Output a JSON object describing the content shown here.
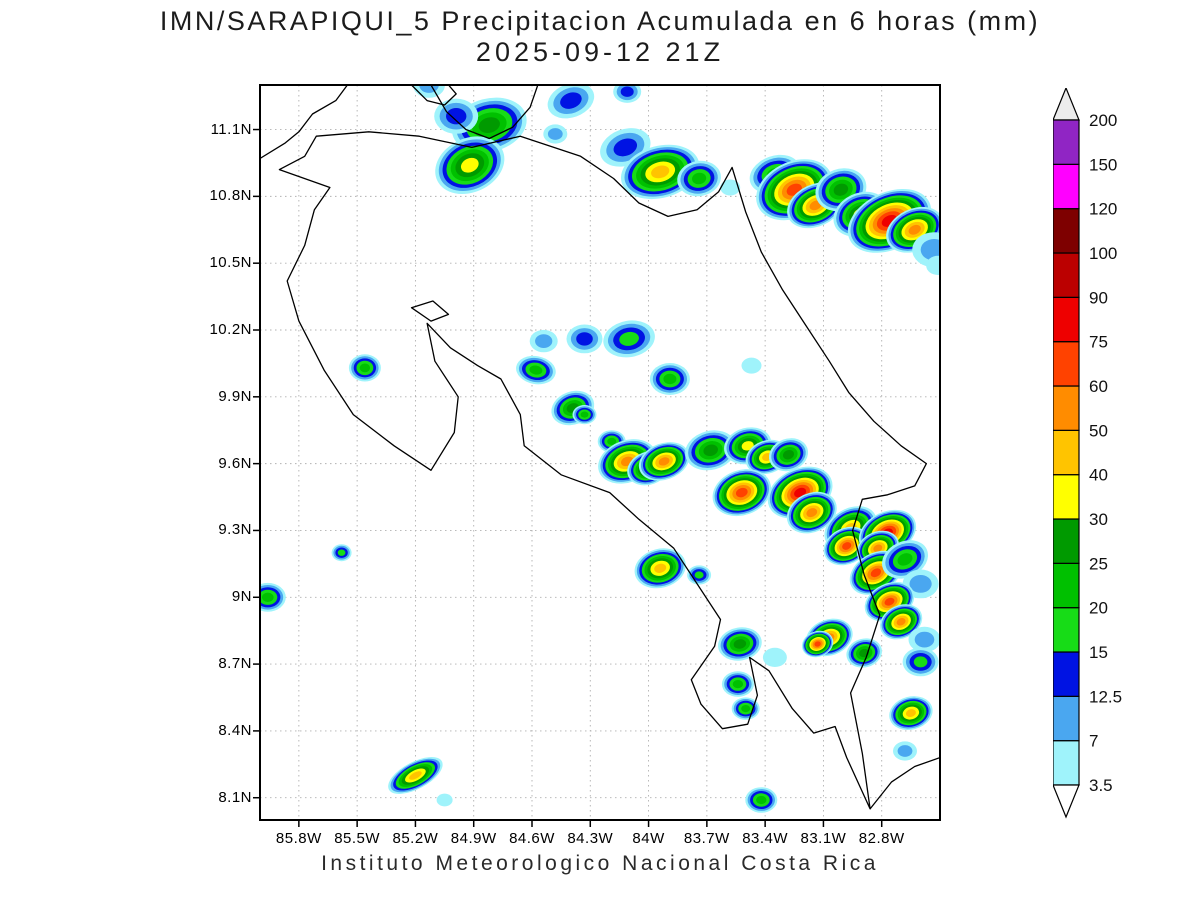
{
  "title": {
    "line1": "IMN/SARAPIQUI_5 Precipitacion Acumulada en 6 horas (mm)",
    "line2": "2025-09-12 21Z"
  },
  "footer": "Instituto Meteorologico Nacional Costa Rica",
  "map": {
    "lon_min_w": 86.0,
    "lon_max_w": 82.5,
    "lat_min": 8.0,
    "lat_max": 11.3,
    "lat_ticks": [
      "11.1N",
      "10.8N",
      "10.5N",
      "10.2N",
      "9.9N",
      "9.6N",
      "9.3N",
      "9N",
      "8.7N",
      "8.4N",
      "8.1N"
    ],
    "lat_tick_values": [
      11.1,
      10.8,
      10.5,
      10.2,
      9.9,
      9.6,
      9.3,
      9.0,
      8.7,
      8.4,
      8.1
    ],
    "lon_ticks": [
      "85.8W",
      "85.5W",
      "85.2W",
      "84.9W",
      "84.6W",
      "84.3W",
      "84W",
      "83.7W",
      "83.4W",
      "83.1W",
      "82.8W"
    ],
    "lon_tick_values": [
      85.8,
      85.5,
      85.2,
      84.9,
      84.6,
      84.3,
      84.0,
      83.7,
      83.4,
      83.1,
      82.8
    ]
  },
  "colorbar": {
    "tick_labels": [
      "3.5",
      "7",
      "12.5",
      "15",
      "20",
      "25",
      "30",
      "40",
      "50",
      "60",
      "75",
      "90",
      "100",
      "120",
      "150",
      "200"
    ],
    "tick_values": [
      3.5,
      7,
      12.5,
      15,
      20,
      25,
      30,
      40,
      50,
      60,
      75,
      90,
      100,
      120,
      150,
      200
    ],
    "segment_colors": [
      "#9ff3fb",
      "#4aa7f0",
      "#0013e3",
      "#17dc17",
      "#00c000",
      "#009a00",
      "#ffff00",
      "#ffc400",
      "#ff8c00",
      "#ff4200",
      "#ee0000",
      "#bb0000",
      "#7e0000",
      "#ff00ff",
      "#9025c4"
    ],
    "under_color": "#ffffff",
    "over_color": "#ececec"
  },
  "palette": {
    "3.5": "#9ff3fb",
    "7": "#4aa7f0",
    "12.5": "#0013e3",
    "15": "#17dc17",
    "20": "#00c000",
    "25": "#009a00",
    "30": "#ffff00",
    "40": "#ffc400",
    "50": "#ff8c00",
    "60": "#ff4200",
    "75": "#ee0000"
  },
  "geography": {
    "costa_rica_outline": [
      [
        85.71,
        11.07
      ],
      [
        85.44,
        11.09
      ],
      [
        85.18,
        11.07
      ],
      [
        84.91,
        11.02
      ],
      [
        84.66,
        11.07
      ],
      [
        84.35,
        10.98
      ],
      [
        84.18,
        10.88
      ],
      [
        84.05,
        10.77
      ],
      [
        83.9,
        10.71
      ],
      [
        83.75,
        10.74
      ],
      [
        83.64,
        10.82
      ],
      [
        83.57,
        10.93
      ],
      [
        83.5,
        10.73
      ],
      [
        83.42,
        10.55
      ],
      [
        83.31,
        10.38
      ],
      [
        83.19,
        10.22
      ],
      [
        83.07,
        10.06
      ],
      [
        82.97,
        9.92
      ],
      [
        82.84,
        9.79
      ],
      [
        82.7,
        9.68
      ],
      [
        82.57,
        9.6
      ],
      [
        82.63,
        9.5
      ],
      [
        82.77,
        9.46
      ],
      [
        82.9,
        9.44
      ],
      [
        82.95,
        9.3
      ],
      [
        82.89,
        9.1
      ],
      [
        82.81,
        8.92
      ],
      [
        82.88,
        8.73
      ],
      [
        82.96,
        8.57
      ],
      [
        82.9,
        8.3
      ],
      [
        82.86,
        8.05
      ],
      [
        82.98,
        8.28
      ],
      [
        83.04,
        8.42
      ],
      [
        83.15,
        8.39
      ],
      [
        83.26,
        8.5
      ],
      [
        83.38,
        8.67
      ],
      [
        83.48,
        8.73
      ],
      [
        83.44,
        8.56
      ],
      [
        83.49,
        8.43
      ],
      [
        83.62,
        8.41
      ],
      [
        83.73,
        8.52
      ],
      [
        83.78,
        8.63
      ],
      [
        83.66,
        8.78
      ],
      [
        83.63,
        8.9
      ],
      [
        83.87,
        9.22
      ],
      [
        84.05,
        9.35
      ],
      [
        84.2,
        9.47
      ],
      [
        84.45,
        9.55
      ],
      [
        84.64,
        9.68
      ],
      [
        84.66,
        9.82
      ],
      [
        84.76,
        9.98
      ],
      [
        84.88,
        10.04
      ],
      [
        85.02,
        10.12
      ],
      [
        85.14,
        10.23
      ],
      [
        85.1,
        10.06
      ],
      [
        84.98,
        9.9
      ],
      [
        85.0,
        9.74
      ],
      [
        85.12,
        9.57
      ],
      [
        85.31,
        9.68
      ],
      [
        85.52,
        9.82
      ],
      [
        85.67,
        10.02
      ],
      [
        85.8,
        10.24
      ],
      [
        85.86,
        10.42
      ],
      [
        85.77,
        10.58
      ],
      [
        85.72,
        10.74
      ],
      [
        85.64,
        10.84
      ],
      [
        85.9,
        10.92
      ],
      [
        85.77,
        10.98
      ]
    ],
    "nicaragua_coast": [
      [
        86.0,
        10.97
      ],
      [
        85.87,
        11.04
      ],
      [
        85.8,
        11.09
      ],
      [
        85.73,
        11.17
      ],
      [
        85.61,
        11.23
      ],
      [
        85.55,
        11.3
      ]
    ],
    "lake_nicaragua_shore": [
      [
        85.12,
        11.3
      ],
      [
        85.04,
        11.18
      ],
      [
        84.94,
        11.1
      ],
      [
        84.82,
        11.06
      ],
      [
        84.7,
        11.11
      ],
      [
        84.61,
        11.2
      ],
      [
        84.57,
        11.3
      ]
    ],
    "ometepe_island": [
      [
        85.22,
        11.3
      ],
      [
        85.14,
        11.23
      ],
      [
        85.05,
        11.21
      ],
      [
        84.99,
        11.26
      ],
      [
        85.03,
        11.3
      ]
    ],
    "chira_island": [
      [
        85.22,
        10.3
      ],
      [
        85.12,
        10.24
      ],
      [
        85.03,
        10.27
      ],
      [
        85.11,
        10.33
      ]
    ],
    "panama_coast": [
      [
        82.86,
        8.05
      ],
      [
        82.75,
        8.17
      ],
      [
        82.63,
        8.24
      ],
      [
        82.5,
        8.28
      ]
    ]
  },
  "precip": {
    "format": [
      "lon_w",
      "lat_n",
      "peak_mm",
      "radius_px",
      "aspect",
      "rotation_deg"
    ],
    "cells": [
      [
        84.82,
        11.12,
        25,
        38,
        0.7,
        -15
      ],
      [
        84.99,
        11.16,
        12.5,
        22,
        0.8,
        0
      ],
      [
        85.13,
        11.3,
        7,
        16,
        0.8,
        0
      ],
      [
        84.4,
        11.23,
        12.5,
        24,
        0.7,
        -20
      ],
      [
        84.48,
        11.08,
        7,
        12,
        0.8,
        0
      ],
      [
        84.92,
        10.94,
        30,
        36,
        0.75,
        -25
      ],
      [
        84.11,
        11.27,
        12.5,
        14,
        0.8,
        0
      ],
      [
        84.12,
        11.02,
        12.5,
        26,
        0.7,
        -20
      ],
      [
        83.94,
        10.91,
        40,
        40,
        0.65,
        -15
      ],
      [
        83.74,
        10.88,
        20,
        22,
        0.8,
        -10
      ],
      [
        83.58,
        10.84,
        3.5,
        10,
        0.8,
        0
      ],
      [
        83.35,
        10.9,
        20,
        26,
        0.7,
        -20
      ],
      [
        83.25,
        10.83,
        60,
        40,
        0.7,
        -25
      ],
      [
        83.14,
        10.76,
        50,
        30,
        0.7,
        -25
      ],
      [
        83.01,
        10.83,
        25,
        26,
        0.8,
        -20
      ],
      [
        82.91,
        10.72,
        30,
        28,
        0.75,
        -25
      ],
      [
        82.76,
        10.69,
        75,
        44,
        0.65,
        -25
      ],
      [
        82.63,
        10.65,
        50,
        30,
        0.7,
        -25
      ],
      [
        82.53,
        10.56,
        7,
        22,
        0.8,
        0
      ],
      [
        82.51,
        10.49,
        3.5,
        12,
        0.8,
        0
      ],
      [
        85.46,
        10.03,
        20,
        16,
        0.85,
        0
      ],
      [
        84.58,
        10.02,
        20,
        20,
        0.7,
        10
      ],
      [
        84.54,
        10.15,
        7,
        14,
        0.8,
        0
      ],
      [
        84.33,
        10.16,
        12.5,
        18,
        0.8,
        0
      ],
      [
        84.1,
        10.16,
        15,
        26,
        0.7,
        -10
      ],
      [
        83.89,
        9.98,
        20,
        20,
        0.8,
        0
      ],
      [
        83.47,
        10.04,
        3.5,
        10,
        0.8,
        0
      ],
      [
        84.39,
        9.85,
        25,
        22,
        0.75,
        -20
      ],
      [
        84.33,
        9.82,
        20,
        12,
        0.8,
        0
      ],
      [
        84.19,
        9.7,
        20,
        14,
        0.8,
        0
      ],
      [
        84.11,
        9.61,
        50,
        30,
        0.7,
        -20
      ],
      [
        84.0,
        9.58,
        40,
        22,
        0.75,
        -20
      ],
      [
        83.92,
        9.61,
        50,
        26,
        0.7,
        -20
      ],
      [
        83.68,
        9.66,
        25,
        26,
        0.75,
        -15
      ],
      [
        83.49,
        9.68,
        30,
        24,
        0.75,
        -15
      ],
      [
        83.39,
        9.63,
        40,
        22,
        0.75,
        -20
      ],
      [
        83.28,
        9.64,
        25,
        20,
        0.8,
        -20
      ],
      [
        83.52,
        9.47,
        60,
        30,
        0.75,
        -20
      ],
      [
        83.22,
        9.47,
        75,
        34,
        0.7,
        -25
      ],
      [
        83.16,
        9.38,
        50,
        26,
        0.75,
        -25
      ],
      [
        82.96,
        9.31,
        40,
        28,
        0.7,
        -30
      ],
      [
        82.98,
        9.23,
        60,
        24,
        0.75,
        -25
      ],
      [
        82.77,
        9.29,
        75,
        30,
        0.7,
        -25
      ],
      [
        82.82,
        9.22,
        50,
        22,
        0.75,
        -25
      ],
      [
        82.83,
        9.11,
        60,
        28,
        0.7,
        -30
      ],
      [
        82.68,
        9.17,
        20,
        24,
        0.75,
        -25
      ],
      [
        82.6,
        9.06,
        7,
        18,
        0.8,
        0
      ],
      [
        83.94,
        9.13,
        40,
        26,
        0.75,
        -15
      ],
      [
        83.74,
        9.1,
        15,
        12,
        0.8,
        0
      ],
      [
        85.58,
        9.2,
        15,
        10,
        0.85,
        0
      ],
      [
        85.96,
        9.0,
        20,
        18,
        0.8,
        0
      ],
      [
        82.76,
        8.98,
        60,
        26,
        0.7,
        -25
      ],
      [
        82.7,
        8.89,
        50,
        22,
        0.75,
        -25
      ],
      [
        82.58,
        8.81,
        7,
        16,
        0.8,
        0
      ],
      [
        83.07,
        8.82,
        50,
        24,
        0.75,
        -20
      ],
      [
        83.13,
        8.79,
        60,
        16,
        0.8,
        -20
      ],
      [
        82.89,
        8.75,
        25,
        18,
        0.8,
        -15
      ],
      [
        83.53,
        8.79,
        25,
        22,
        0.75,
        -10
      ],
      [
        83.35,
        8.73,
        3.5,
        12,
        0.8,
        0
      ],
      [
        83.54,
        8.61,
        20,
        16,
        0.8,
        0
      ],
      [
        82.6,
        8.71,
        15,
        18,
        0.8,
        0
      ],
      [
        83.5,
        8.5,
        20,
        14,
        0.8,
        0
      ],
      [
        82.65,
        8.48,
        40,
        22,
        0.75,
        -15
      ],
      [
        82.68,
        8.31,
        7,
        12,
        0.8,
        0
      ],
      [
        85.2,
        8.2,
        40,
        30,
        0.45,
        -28
      ],
      [
        85.05,
        8.09,
        3.5,
        8,
        0.8,
        0
      ],
      [
        83.42,
        8.09,
        20,
        16,
        0.8,
        0
      ]
    ]
  }
}
